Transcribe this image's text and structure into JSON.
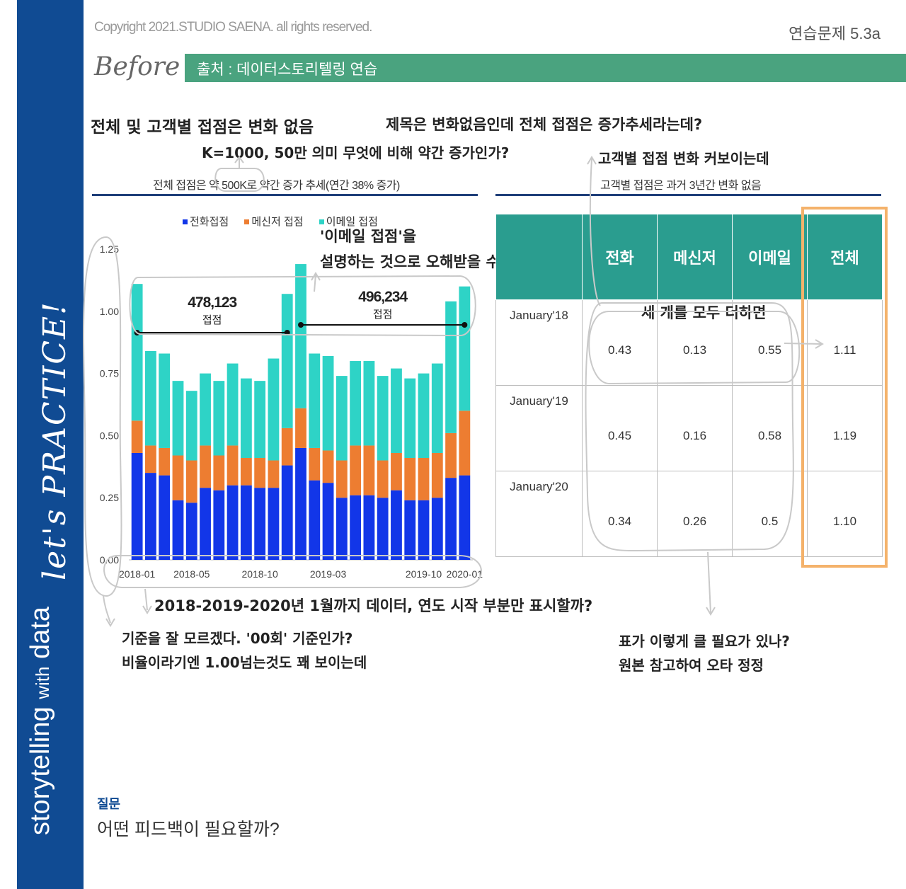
{
  "header": {
    "copyright": "Copyright 2021.STUDIO SAENA. all rights reserved.",
    "exercise": "연습문제 5.3a",
    "before": "Before",
    "source": "출처 : 데이터스토리텔링 연습"
  },
  "sidebar": {
    "title": "let's PRACTICE!",
    "brand_main": "storytelling ",
    "brand_with": "with",
    "brand_data": " data"
  },
  "chart_title": "전체 및 고객별 접점은 변화 없음",
  "chart_subtitle": "전체 접점은 약 500K로 약간 증가 추세(연간 38% 증가)",
  "table_subtitle": "고객별 접점은 과거 3년간 변화 없음",
  "annotations": {
    "a1": "제목은 변화없음인데 전체 접점은 증가추세라는데?",
    "a2": "K=1000, 50만 의미 무엇에 비해 약간 증가인가?",
    "a3": "고객별 접점 변화 커보이는데",
    "a4_line1": "'이메일 접점'을",
    "a4_line2": "설명하는 것으로 오해받을 수 있다",
    "a5": "세 개를 모두 더하면",
    "a6": "2018-2019-2020년 1월까지 데이터, 연도 시작 부분만 표시할까?",
    "a7_line1": "기준을 잘 모르겠다. '00회' 기준인가?",
    "a7_line2": "비율이라기엔 1.00넘는것도 꽤 보이는데",
    "a8_line1": "표가 이렇게 클 필요가 있나?",
    "a8_line2": "원본 참고하여 오타 정정"
  },
  "question": {
    "label": "질문",
    "text": "어떤 피드백이 필요할까?"
  },
  "table": {
    "headers": [
      "",
      "전화",
      "메신저",
      "이메일",
      "전체"
    ],
    "rows": [
      {
        "label": "January'18",
        "values": [
          "0.43",
          "0.13",
          "0.55",
          "1.11"
        ]
      },
      {
        "label": "January'19",
        "values": [
          "0.45",
          "0.16",
          "0.58",
          "1.19"
        ]
      },
      {
        "label": "January'20",
        "values": [
          "0.34",
          "0.26",
          "0.5",
          "1.10"
        ]
      }
    ]
  },
  "chart_data": {
    "type": "bar",
    "stacked": true,
    "categories": [
      "2018-01",
      "2018-02",
      "2018-03",
      "2018-04",
      "2018-05",
      "2018-06",
      "2018-07",
      "2018-08",
      "2018-09",
      "2018-10",
      "2018-11",
      "2018-12",
      "2019-01",
      "2019-02",
      "2019-03",
      "2019-04",
      "2019-05",
      "2019-06",
      "2019-07",
      "2019-08",
      "2019-09",
      "2019-10",
      "2019-11",
      "2019-12",
      "2020-01"
    ],
    "tick_labels": [
      "2018-01",
      "2018-05",
      "2018-10",
      "2019-03",
      "2019-10",
      "2020-01"
    ],
    "series": [
      {
        "name": "전화접점",
        "color": "#1236e8",
        "values": [
          0.43,
          0.35,
          0.34,
          0.24,
          0.23,
          0.29,
          0.28,
          0.3,
          0.3,
          0.29,
          0.29,
          0.38,
          0.45,
          0.32,
          0.31,
          0.25,
          0.26,
          0.26,
          0.25,
          0.28,
          0.24,
          0.24,
          0.25,
          0.33,
          0.34
        ]
      },
      {
        "name": "메신저 접점",
        "color": "#ed7d31",
        "values": [
          0.13,
          0.11,
          0.11,
          0.18,
          0.17,
          0.17,
          0.14,
          0.16,
          0.11,
          0.12,
          0.11,
          0.15,
          0.16,
          0.13,
          0.13,
          0.15,
          0.2,
          0.2,
          0.15,
          0.15,
          0.17,
          0.17,
          0.18,
          0.18,
          0.26
        ]
      },
      {
        "name": "이메일 접점",
        "color": "#2ed3c6",
        "values": [
          0.55,
          0.38,
          0.38,
          0.3,
          0.28,
          0.29,
          0.3,
          0.33,
          0.32,
          0.31,
          0.41,
          0.54,
          0.58,
          0.38,
          0.38,
          0.34,
          0.34,
          0.34,
          0.34,
          0.34,
          0.32,
          0.34,
          0.36,
          0.53,
          0.5
        ]
      }
    ],
    "y_ticks": [
      "0.00",
      "0.25",
      "0.50",
      "0.75",
      "1.00",
      "1.25"
    ],
    "ylim": [
      0,
      1.25
    ],
    "legend_position": "top",
    "callouts": [
      {
        "value": "478,123",
        "label": "접점"
      },
      {
        "value": "496,234",
        "label": "접점"
      }
    ]
  }
}
